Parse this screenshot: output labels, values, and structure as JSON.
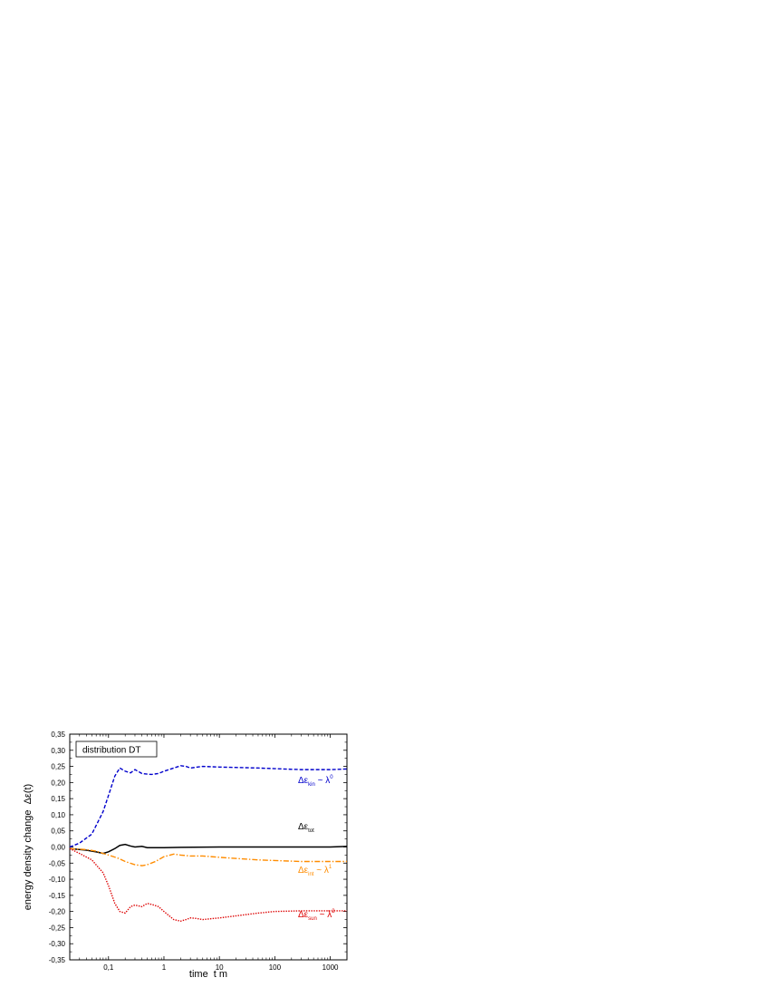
{
  "chart_data": {
    "type": "line",
    "title": "",
    "xlabel": "time  t m",
    "ylabel": "energy density change  Δε(t)",
    "x_scale": "log",
    "xlim": [
      0.02,
      2000
    ],
    "ylim": [
      -0.35,
      0.35
    ],
    "x_ticks": [
      {
        "value": 0.1,
        "label": "0,1"
      },
      {
        "value": 1,
        "label": "1"
      },
      {
        "value": 10,
        "label": "10"
      },
      {
        "value": 100,
        "label": "100"
      },
      {
        "value": 1000,
        "label": "1000"
      }
    ],
    "y_ticks": [
      {
        "value": 0.35,
        "label": "0,35"
      },
      {
        "value": 0.3,
        "label": "0,30"
      },
      {
        "value": 0.25,
        "label": "0,25"
      },
      {
        "value": 0.2,
        "label": "0,20"
      },
      {
        "value": 0.15,
        "label": "0,15"
      },
      {
        "value": 0.1,
        "label": "0,10"
      },
      {
        "value": 0.05,
        "label": "0,05"
      },
      {
        "value": 0.0,
        "label": "0,00"
      },
      {
        "value": -0.05,
        "label": "-0,05"
      },
      {
        "value": -0.1,
        "label": "-0,10"
      },
      {
        "value": -0.15,
        "label": "-0,15"
      },
      {
        "value": -0.2,
        "label": "-0,20"
      },
      {
        "value": -0.25,
        "label": "-0,25"
      },
      {
        "value": -0.3,
        "label": "-0,30"
      },
      {
        "value": -0.35,
        "label": "-0,35"
      }
    ],
    "legend_box": "distribution  DT",
    "legend_placement": "top-left",
    "grid": false,
    "series": [
      {
        "key": "kin",
        "color": "#0000cc",
        "dash": "dashed",
        "label": {
          "prefix": "Δε",
          "sub": "kin",
          "mid": " ~ λ",
          "sup": "0"
        },
        "points": [
          [
            0.02,
            0.0
          ],
          [
            0.03,
            0.012
          ],
          [
            0.05,
            0.04
          ],
          [
            0.08,
            0.11
          ],
          [
            0.1,
            0.16
          ],
          [
            0.13,
            0.22
          ],
          [
            0.16,
            0.245
          ],
          [
            0.2,
            0.235
          ],
          [
            0.25,
            0.23
          ],
          [
            0.3,
            0.24
          ],
          [
            0.4,
            0.228
          ],
          [
            0.5,
            0.226
          ],
          [
            0.6,
            0.225
          ],
          [
            0.8,
            0.228
          ],
          [
            1.0,
            0.235
          ],
          [
            1.5,
            0.245
          ],
          [
            2.0,
            0.252
          ],
          [
            2.5,
            0.25
          ],
          [
            3.0,
            0.245
          ],
          [
            5.0,
            0.25
          ],
          [
            10,
            0.248
          ],
          [
            50,
            0.245
          ],
          [
            100,
            0.243
          ],
          [
            300,
            0.24
          ],
          [
            1000,
            0.24
          ],
          [
            2000,
            0.242
          ]
        ]
      },
      {
        "key": "tot",
        "color": "#000000",
        "dash": "solid",
        "label": {
          "prefix": "Δε",
          "sub": "tot",
          "mid": "",
          "sup": ""
        },
        "points": [
          [
            0.02,
            -0.005
          ],
          [
            0.04,
            -0.01
          ],
          [
            0.06,
            -0.015
          ],
          [
            0.08,
            -0.02
          ],
          [
            0.1,
            -0.015
          ],
          [
            0.13,
            -0.005
          ],
          [
            0.16,
            0.005
          ],
          [
            0.2,
            0.008
          ],
          [
            0.25,
            0.003
          ],
          [
            0.3,
            0.0
          ],
          [
            0.4,
            0.002
          ],
          [
            0.5,
            -0.002
          ],
          [
            1.0,
            -0.002
          ],
          [
            2.0,
            -0.001
          ],
          [
            10,
            0.0
          ],
          [
            100,
            0.0
          ],
          [
            1000,
            0.0
          ],
          [
            2000,
            0.002
          ]
        ]
      },
      {
        "key": "int",
        "color": "#ff8c00",
        "dash": "dashdot",
        "label": {
          "prefix": "Δε",
          "sub": "int",
          "mid": " ~ λ",
          "sup": "1"
        },
        "points": [
          [
            0.02,
            -0.005
          ],
          [
            0.04,
            -0.008
          ],
          [
            0.06,
            -0.013
          ],
          [
            0.08,
            -0.02
          ],
          [
            0.1,
            -0.025
          ],
          [
            0.15,
            -0.035
          ],
          [
            0.2,
            -0.045
          ],
          [
            0.3,
            -0.055
          ],
          [
            0.4,
            -0.058
          ],
          [
            0.5,
            -0.055
          ],
          [
            0.7,
            -0.045
          ],
          [
            1.0,
            -0.03
          ],
          [
            1.5,
            -0.022
          ],
          [
            2.0,
            -0.025
          ],
          [
            3.0,
            -0.028
          ],
          [
            5.0,
            -0.028
          ],
          [
            10,
            -0.032
          ],
          [
            50,
            -0.04
          ],
          [
            100,
            -0.042
          ],
          [
            300,
            -0.045
          ],
          [
            1000,
            -0.045
          ],
          [
            2000,
            -0.045
          ]
        ]
      },
      {
        "key": "sun",
        "color": "#dd0000",
        "dash": "dotted",
        "label": {
          "prefix": "Δε",
          "sub": "sun",
          "mid": " ~ λ",
          "sup": "2"
        },
        "points": [
          [
            0.02,
            -0.005
          ],
          [
            0.03,
            -0.02
          ],
          [
            0.05,
            -0.04
          ],
          [
            0.08,
            -0.08
          ],
          [
            0.1,
            -0.12
          ],
          [
            0.13,
            -0.175
          ],
          [
            0.16,
            -0.2
          ],
          [
            0.2,
            -0.205
          ],
          [
            0.25,
            -0.185
          ],
          [
            0.3,
            -0.18
          ],
          [
            0.4,
            -0.185
          ],
          [
            0.5,
            -0.175
          ],
          [
            0.6,
            -0.178
          ],
          [
            0.8,
            -0.185
          ],
          [
            1.0,
            -0.2
          ],
          [
            1.5,
            -0.225
          ],
          [
            2.0,
            -0.23
          ],
          [
            2.5,
            -0.225
          ],
          [
            3.0,
            -0.22
          ],
          [
            4.0,
            -0.222
          ],
          [
            5.0,
            -0.225
          ],
          [
            10,
            -0.22
          ],
          [
            50,
            -0.205
          ],
          [
            100,
            -0.2
          ],
          [
            300,
            -0.198
          ],
          [
            1000,
            -0.198
          ],
          [
            2000,
            -0.198
          ]
        ]
      }
    ]
  }
}
